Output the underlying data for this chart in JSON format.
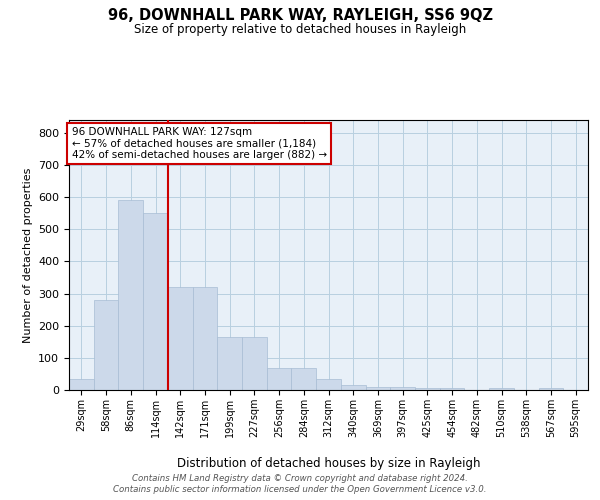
{
  "title": "96, DOWNHALL PARK WAY, RAYLEIGH, SS6 9QZ",
  "subtitle": "Size of property relative to detached houses in Rayleigh",
  "xlabel": "Distribution of detached houses by size in Rayleigh",
  "ylabel": "Number of detached properties",
  "bar_color": "#ccd9ea",
  "bar_edge_color": "#a8bdd4",
  "grid_color": "#b8cfe0",
  "background_color": "#e8f0f8",
  "vline_color": "#cc0000",
  "categories": [
    "29sqm",
    "58sqm",
    "86sqm",
    "114sqm",
    "142sqm",
    "171sqm",
    "199sqm",
    "227sqm",
    "256sqm",
    "284sqm",
    "312sqm",
    "340sqm",
    "369sqm",
    "397sqm",
    "425sqm",
    "454sqm",
    "482sqm",
    "510sqm",
    "538sqm",
    "567sqm",
    "595sqm"
  ],
  "values": [
    35,
    280,
    590,
    550,
    320,
    320,
    165,
    165,
    70,
    70,
    35,
    15,
    10,
    10,
    5,
    5,
    0,
    5,
    0,
    5,
    0
  ],
  "vline_position": 3.5,
  "annotation_text": "96 DOWNHALL PARK WAY: 127sqm\n← 57% of detached houses are smaller (1,184)\n42% of semi-detached houses are larger (882) →",
  "annotation_box_facecolor": "#ffffff",
  "annotation_border_color": "#cc0000",
  "footer_text": "Contains HM Land Registry data © Crown copyright and database right 2024.\nContains public sector information licensed under the Open Government Licence v3.0.",
  "ylim": [
    0,
    840
  ],
  "yticks": [
    0,
    100,
    200,
    300,
    400,
    500,
    600,
    700,
    800
  ]
}
